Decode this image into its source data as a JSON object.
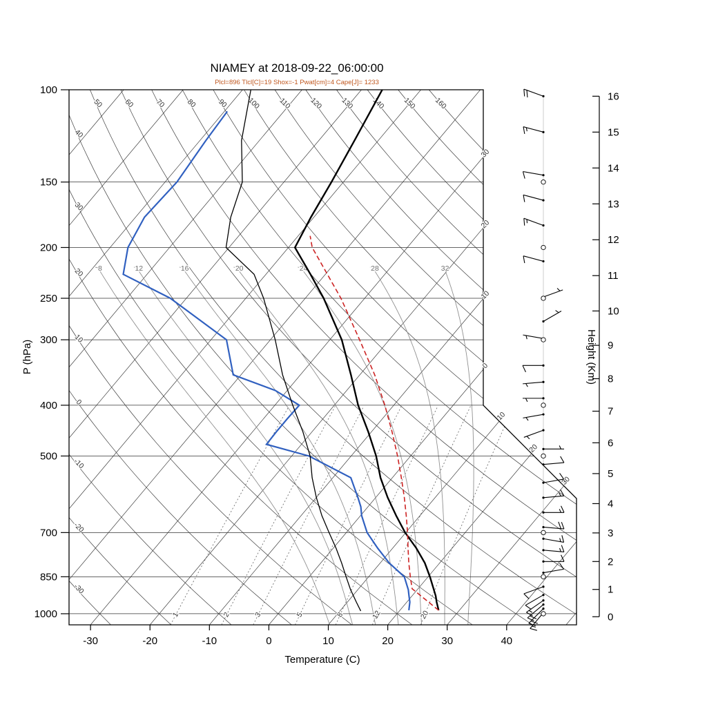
{
  "title": "NIAMEY at 2018-09-22_06:00:00",
  "subtitle": "Plcl=896 Tlcl[C]=19 Shox=-1 Pwat[cm]=4 Cape[J]= 1233",
  "colors": {
    "temperature": "#000000",
    "dewpoint": "#3060c0",
    "parcel": "#cc2222",
    "secondary": "#000000",
    "subtitle": "#c0571e",
    "grid": "#3c3c3c",
    "moist": "#909090",
    "mixing": "#606060"
  },
  "axes": {
    "pressure": {
      "label": "P (hPa)",
      "ticks": [
        100,
        150,
        200,
        250,
        300,
        400,
        500,
        700,
        850,
        1000
      ],
      "min": 100,
      "max": 1050
    },
    "temperature": {
      "label": "Temperature (C)",
      "ticks": [
        -30,
        -20,
        -10,
        0,
        10,
        20,
        30,
        40
      ]
    },
    "height": {
      "label": "Height (Km)",
      "ticks": [
        0,
        1,
        2,
        3,
        4,
        5,
        6,
        7,
        8,
        9,
        10,
        11,
        12,
        13,
        14,
        15,
        16
      ]
    }
  },
  "chart_data": {
    "type": "line",
    "subtype": "skew-t-log-p",
    "station": "NIAMEY",
    "datetime": "2018-09-22_06:00:00",
    "indices": {
      "Plcl": 896,
      "Tlcl_C": 19,
      "Shox": -1,
      "Pwat_cm": 4,
      "Cape_J": 1233
    },
    "xlabel": "Temperature (C)",
    "ylabel": "P (hPa)",
    "y2label": "Height (Km)",
    "series": [
      {
        "name": "temperature",
        "color": "#000000",
        "style": "solid",
        "width": 2.4,
        "points": [
          [
            985,
            26.5
          ],
          [
            950,
            25.0
          ],
          [
            925,
            24.0
          ],
          [
            900,
            22.8
          ],
          [
            850,
            20.3
          ],
          [
            800,
            17.5
          ],
          [
            750,
            14.0
          ],
          [
            700,
            9.9
          ],
          [
            650,
            6.0
          ],
          [
            600,
            2.0
          ],
          [
            550,
            -2.0
          ],
          [
            500,
            -5.8
          ],
          [
            450,
            -10.5
          ],
          [
            400,
            -16.0
          ],
          [
            350,
            -21.5
          ],
          [
            300,
            -28.0
          ],
          [
            250,
            -36.9
          ],
          [
            225,
            -42.5
          ],
          [
            200,
            -48.9
          ],
          [
            175,
            -50.5
          ],
          [
            150,
            -52.0
          ],
          [
            125,
            -54.0
          ],
          [
            100,
            -56.5
          ]
        ]
      },
      {
        "name": "dewpoint",
        "color": "#3060c0",
        "style": "solid",
        "width": 2.2,
        "points": [
          [
            985,
            21.5
          ],
          [
            950,
            20.5
          ],
          [
            925,
            19.5
          ],
          [
            900,
            18.5
          ],
          [
            850,
            16.0
          ],
          [
            800,
            11.5
          ],
          [
            750,
            7.5
          ],
          [
            700,
            3.5
          ],
          [
            650,
            0.2
          ],
          [
            625,
            -1.2
          ],
          [
            600,
            -3.0
          ],
          [
            550,
            -7.0
          ],
          [
            500,
            -17.1
          ],
          [
            475,
            -25.9
          ],
          [
            450,
            -26.0
          ],
          [
            425,
            -26.0
          ],
          [
            400,
            -25.9
          ],
          [
            375,
            -32.0
          ],
          [
            350,
            -41.3
          ],
          [
            300,
            -47.4
          ],
          [
            250,
            -62.7
          ],
          [
            225,
            -74.0
          ],
          [
            200,
            -77.0
          ],
          [
            175,
            -78.5
          ],
          [
            150,
            -78.0
          ],
          [
            125,
            -79.0
          ],
          [
            110,
            -79.5
          ]
        ]
      },
      {
        "name": "parcel",
        "color": "#cc2222",
        "style": "dashed",
        "width": 1.6,
        "points": [
          [
            985,
            26.5
          ],
          [
            896,
            19.0
          ],
          [
            850,
            17.0
          ],
          [
            800,
            14.8
          ],
          [
            750,
            12.6
          ],
          [
            700,
            10.3
          ],
          [
            650,
            7.7
          ],
          [
            600,
            4.8
          ],
          [
            550,
            1.5
          ],
          [
            500,
            -2.2
          ],
          [
            450,
            -6.5
          ],
          [
            400,
            -11.5
          ],
          [
            350,
            -17.5
          ],
          [
            300,
            -25.0
          ],
          [
            250,
            -34.0
          ],
          [
            200,
            -46.0
          ],
          [
            190,
            -48.0
          ]
        ]
      },
      {
        "name": "secondary",
        "color": "#000000",
        "style": "solid",
        "width": 1.3,
        "points": [
          [
            988,
            13.5
          ],
          [
            950,
            11.5
          ],
          [
            900,
            8.8
          ],
          [
            850,
            6.2
          ],
          [
            800,
            3.5
          ],
          [
            750,
            0.5
          ],
          [
            700,
            -2.9
          ],
          [
            650,
            -6.5
          ],
          [
            600,
            -10.0
          ],
          [
            550,
            -13.5
          ],
          [
            500,
            -16.9
          ],
          [
            450,
            -21.5
          ],
          [
            400,
            -27.0
          ],
          [
            350,
            -33.0
          ],
          [
            300,
            -39.2
          ],
          [
            250,
            -47.0
          ],
          [
            225,
            -52.0
          ],
          [
            200,
            -60.5
          ],
          [
            175,
            -64.0
          ],
          [
            150,
            -67.0
          ],
          [
            125,
            -73.0
          ],
          [
            100,
            -78.6
          ]
        ]
      }
    ],
    "wind_barbs": [
      {
        "km": 0.15,
        "dir": 220,
        "kt": 15
      },
      {
        "km": 0.3,
        "dir": 225,
        "kt": 20
      },
      {
        "km": 0.45,
        "dir": 230,
        "kt": 20
      },
      {
        "km": 0.6,
        "dir": 235,
        "kt": 15
      },
      {
        "km": 0.8,
        "dir": 240,
        "kt": 12
      },
      {
        "km": 1.1,
        "dir": 250,
        "kt": 10
      },
      {
        "km": 1.6,
        "dir": 80,
        "kt": 10
      },
      {
        "km": 2.0,
        "dir": 90,
        "kt": 12
      },
      {
        "km": 2.4,
        "dir": 95,
        "kt": 15
      },
      {
        "km": 2.8,
        "dir": 100,
        "kt": 15
      },
      {
        "km": 3.2,
        "dir": 95,
        "kt": 18
      },
      {
        "km": 3.7,
        "dir": 90,
        "kt": 15
      },
      {
        "km": 4.2,
        "dir": 85,
        "kt": 15
      },
      {
        "km": 4.7,
        "dir": 80,
        "kt": 12
      },
      {
        "km": 5.3,
        "dir": 85,
        "kt": 8
      },
      {
        "km": 5.8,
        "dir": 90,
        "kt": 5
      },
      {
        "km": 6.4,
        "dir": 250,
        "kt": 5
      },
      {
        "km": 6.9,
        "dir": 260,
        "kt": 4
      },
      {
        "km": 7.4,
        "dir": 270,
        "kt": 5
      },
      {
        "km": 7.9,
        "dir": 265,
        "kt": 4
      },
      {
        "km": 8.4,
        "dir": 270,
        "kt": 10
      },
      {
        "km": 9.2,
        "dir": 280,
        "kt": 5
      },
      {
        "km": 9.7,
        "dir": 60,
        "kt": 5
      },
      {
        "km": 10.4,
        "dir": 70,
        "kt": 4
      },
      {
        "km": 11.4,
        "dir": 285,
        "kt": 10
      },
      {
        "km": 12.4,
        "dir": 290,
        "kt": 15
      },
      {
        "km": 13.1,
        "dir": 285,
        "kt": 8
      },
      {
        "km": 13.8,
        "dir": 280,
        "kt": 10
      },
      {
        "km": 15.0,
        "dir": 285,
        "kt": 15
      },
      {
        "km": 16.0,
        "dir": 290,
        "kt": 18
      }
    ],
    "station_circle_levels_hpa": [
      1000,
      850,
      700,
      500,
      400,
      300,
      250,
      200,
      150
    ],
    "background": {
      "isotherms_c": [
        -100,
        -90,
        -80,
        -70,
        -60,
        -50,
        -40,
        -30,
        -20,
        -10,
        0,
        10,
        20,
        30,
        40,
        50
      ],
      "isotherm_labels_edge": [
        {
          "t": -30,
          "text": "30"
        },
        {
          "t": -20,
          "text": "20"
        },
        {
          "t": -10,
          "text": "10"
        },
        {
          "t": 0,
          "text": "0"
        }
      ],
      "isotherm_labels_diagonal": [
        {
          "t": 10,
          "text": "10"
        },
        {
          "t": 20,
          "text": "20"
        },
        {
          "t": 30,
          "text": "30"
        }
      ],
      "dry_adiabats_c": [
        -30,
        -20,
        -10,
        0,
        10,
        20,
        30,
        40,
        50,
        60,
        70,
        80,
        90,
        100,
        110,
        120,
        130,
        140,
        150,
        160
      ],
      "dry_adiabat_top_labels": [
        50,
        60,
        70,
        80,
        90,
        100,
        110,
        120,
        130,
        140,
        150,
        160
      ],
      "dry_adiabat_left_labels": [
        40,
        30,
        20,
        10,
        0,
        -10,
        -20,
        -30
      ],
      "moist_adiabats_c": [
        8,
        12,
        16,
        20,
        24,
        28,
        32
      ],
      "mixing_ratio_gkg": [
        1,
        2,
        3,
        5,
        8,
        12,
        20
      ]
    }
  }
}
